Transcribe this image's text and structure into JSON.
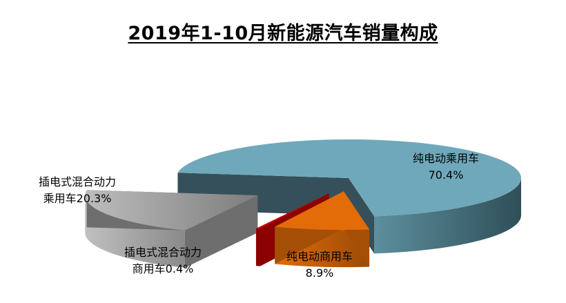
{
  "chart_data": {
    "type": "pie",
    "title": "2019年1-10月新能源汽车销量构成",
    "slices": [
      {
        "line1": "纯电动乘用车",
        "line2": "70.4%",
        "value": 70.4,
        "color": "#6fa8ba"
      },
      {
        "line1": "纯电动商用车",
        "line2": "8.9%",
        "value": 8.9,
        "color": "#e36c09"
      },
      {
        "line1": "插电式混合动力",
        "line2": "商用车0.4%",
        "value": 0.4,
        "color": "#c00000"
      },
      {
        "line1": "插电式混合动力",
        "line2": "乘用车20.3%",
        "value": 20.3,
        "color": "#a6a6a6"
      }
    ]
  }
}
